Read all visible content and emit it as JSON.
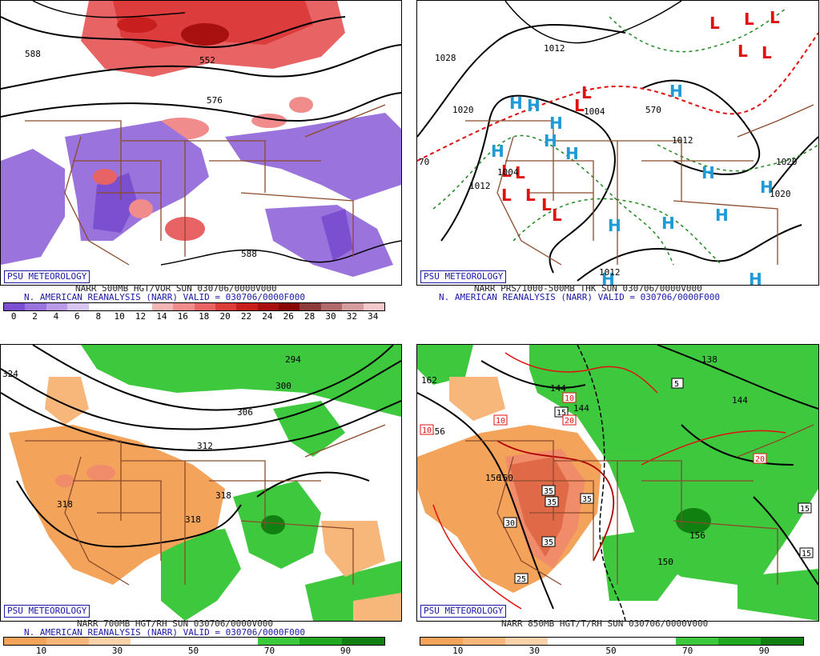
{
  "panels": [
    {
      "badge": "PSU METEOROLOGY",
      "title": "NARR 500MB HGT/VOR SUN 030706/0000V000",
      "subtitle": "N. AMERICAN REANALYSIS (NARR) VALID = 030706/0000F000",
      "contour_labels": [
        "588",
        "576",
        "552",
        "588",
        "588",
        "588"
      ],
      "colorbar": {
        "ticks": [
          "0",
          "2",
          "4",
          "6",
          "8",
          "10",
          "12",
          "14",
          "16",
          "18",
          "20",
          "22",
          "24",
          "26",
          "28",
          "30",
          "32",
          "34"
        ],
        "colors": [
          "#7b4fd0",
          "#9a73dc",
          "#b89ae6",
          "#d7c6f1",
          "#ffffff",
          "#ffffff",
          "#ffffff",
          "#f6b5b5",
          "#f08c8c",
          "#e86464",
          "#dd3c3c",
          "#c81e1e",
          "#a81010",
          "#880808",
          "#8c3a3a",
          "#b06a6a",
          "#d49c9c",
          "#f2c8cc"
        ]
      }
    },
    {
      "badge": "PSU METEOROLOGY",
      "title": "NARR PRS/1000-500MB THK SUN 030706/0000V000",
      "subtitle": "N. AMERICAN REANALYSIS (NARR) VALID = 030706/0000F000",
      "contour_labels": [
        "1028",
        "1012",
        "1020",
        "1012",
        "1020",
        "1020",
        "1012",
        "1012",
        "1004",
        "1004",
        "570",
        "70"
      ],
      "highs_lows": {
        "H": "H",
        "L": "L"
      }
    },
    {
      "badge": "PSU METEOROLOGY",
      "title": "NARR 700MB HGT/RH SUN 030706/0000V000",
      "subtitle": "N. AMERICAN REANALYSIS (NARR) VALID = 030706/0000F000",
      "contour_labels": [
        "324",
        "294",
        "300",
        "306",
        "312",
        "318",
        "318",
        "318"
      ],
      "colorbar": {
        "ticks": [
          "10",
          "30",
          "50",
          "70",
          "90"
        ],
        "colors": [
          "#f4a35a",
          "#f7b67a",
          "#fbd2aa",
          "#ffffff",
          "#ffffff",
          "#ffffff",
          "#3ec83e",
          "#20a820",
          "#108010"
        ]
      }
    },
    {
      "badge": "PSU METEOROLOGY",
      "title": "NARR 850MB HGT/T/RH SUN 030706/0000V000",
      "contour_labels": [
        "162",
        "156",
        "156",
        "144",
        "144",
        "138",
        "144",
        "156",
        "150",
        "150"
      ],
      "temp_labels": [
        "10",
        "10",
        "10",
        "15",
        "20",
        "5",
        "20",
        "15",
        "15",
        "35",
        "35",
        "35",
        "30",
        "35",
        "25"
      ],
      "colorbar": {
        "ticks": [
          "10",
          "30",
          "50",
          "70",
          "90"
        ],
        "colors": [
          "#f4a35a",
          "#f7b67a",
          "#fbd2aa",
          "#ffffff",
          "#ffffff",
          "#ffffff",
          "#3ec83e",
          "#20a820",
          "#108010"
        ]
      }
    }
  ]
}
